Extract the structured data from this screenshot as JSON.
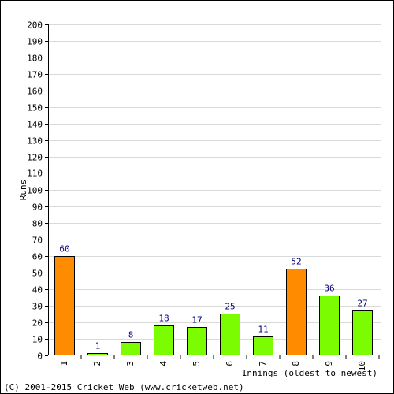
{
  "colors": {
    "background": "#ffffff",
    "frame": "#000000",
    "gridline": "#d9d9d9",
    "axis": "#000000",
    "tick_text": "#000000",
    "value_label_text": "#00007a",
    "bar_stroke": "#000000",
    "bar_fifty_plus": "#ff8c00",
    "bar_regular": "#7cfc00"
  },
  "footer": {
    "copyright": "(C) 2001-2015 Cricket Web (www.cricketweb.net)"
  },
  "chart_data": {
    "type": "bar",
    "xlabel": "Innings (oldest to newest)",
    "ylabel": "Runs",
    "ylim": [
      0,
      200
    ],
    "ytick_step": 10,
    "grid": true,
    "categories": [
      "1",
      "2",
      "3",
      "4",
      "5",
      "6",
      "7",
      "8",
      "9",
      "10"
    ],
    "values": [
      60,
      1,
      8,
      18,
      17,
      25,
      11,
      52,
      36,
      27
    ],
    "value_labels": [
      "60",
      "1",
      "8",
      "18",
      "17",
      "25",
      "11",
      "52",
      "36",
      "27"
    ],
    "bar_colors": [
      "#ff8c00",
      "#7cfc00",
      "#7cfc00",
      "#7cfc00",
      "#7cfc00",
      "#7cfc00",
      "#7cfc00",
      "#ff8c00",
      "#7cfc00",
      "#7cfc00"
    ]
  }
}
